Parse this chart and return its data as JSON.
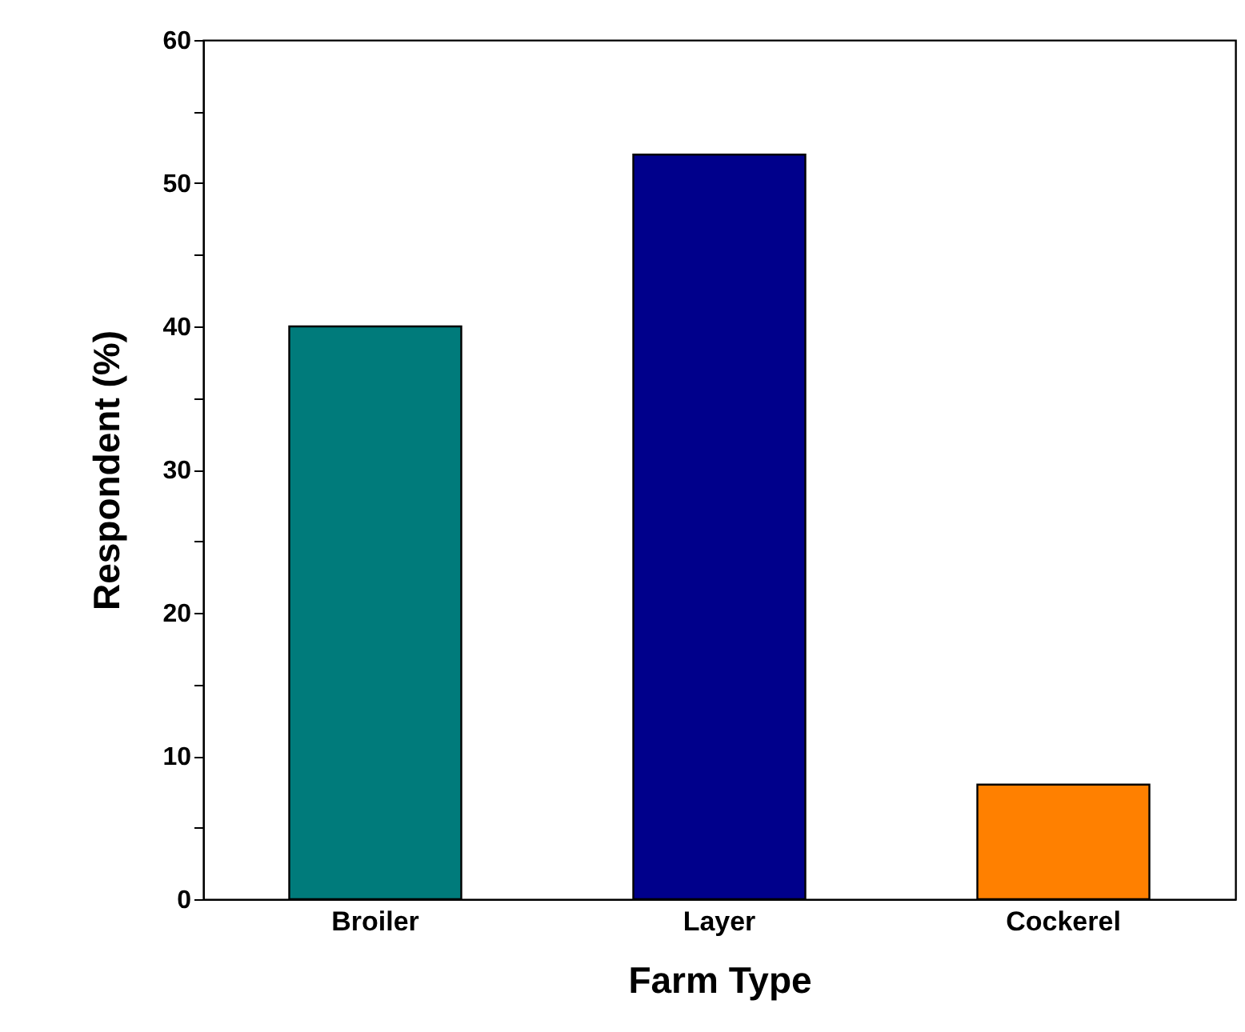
{
  "chart_data": {
    "type": "bar",
    "xlabel": "Farm Type",
    "ylabel": "Respondent (%)",
    "categories": [
      "Broiler",
      "Layer",
      "Cockerel"
    ],
    "values": [
      40,
      52,
      8
    ],
    "colors": [
      "#007b7b",
      "#00008b",
      "#ff8000"
    ],
    "ylim": [
      0,
      60
    ],
    "yticks": [
      0,
      {
        "value": 5,
        "label": null
      },
      10,
      {
        "value": 15,
        "label": null
      },
      20,
      {
        "value": 25,
        "label": null
      },
      30,
      {
        "value": 35,
        "label": null
      },
      40,
      {
        "value": 45,
        "label": null
      },
      50,
      {
        "value": 55,
        "label": null
      },
      60
    ],
    "grid": false
  }
}
